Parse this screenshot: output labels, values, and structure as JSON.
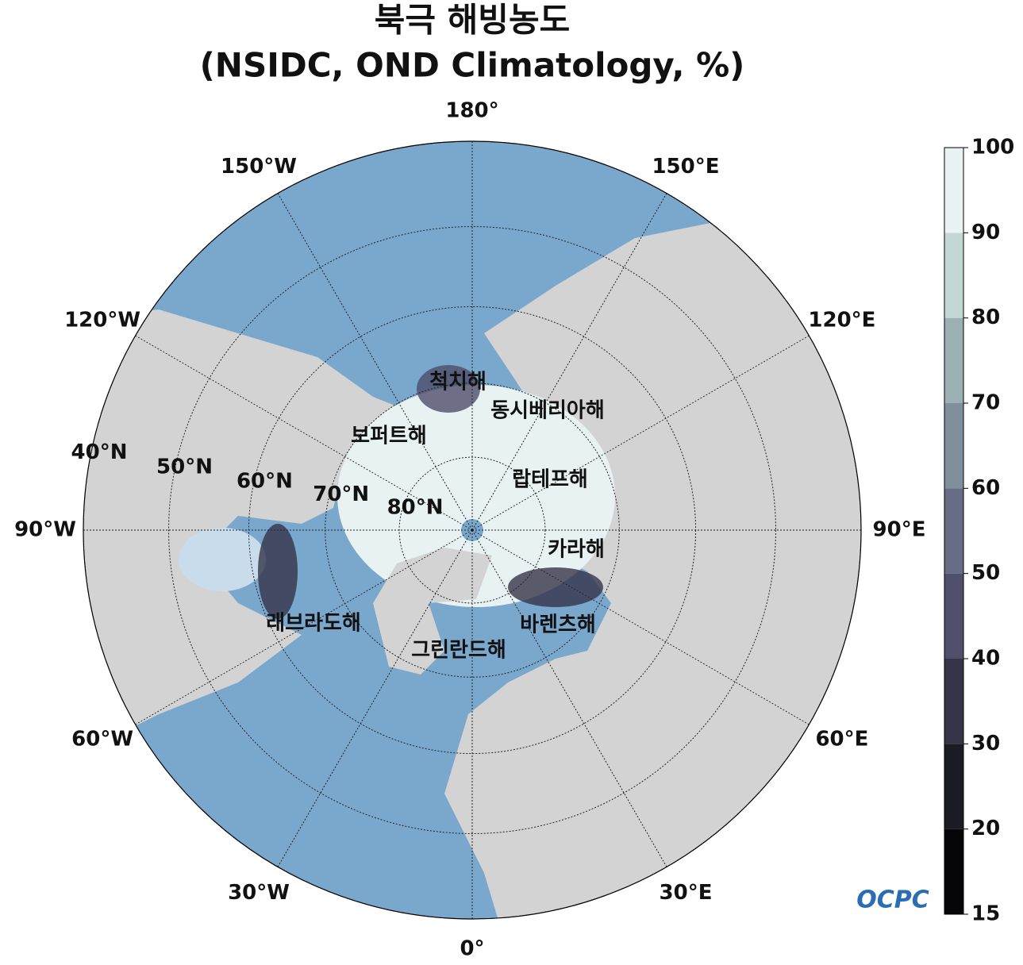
{
  "title": "북극 해빙농도",
  "subtitle": "(NSIDC, OND Climatology, %)",
  "longitudes": [
    {
      "value": 180,
      "label": "180°"
    },
    {
      "value": 150,
      "label": "150°E"
    },
    {
      "value": 120,
      "label": "120°E"
    },
    {
      "value": 90,
      "label": "90°E"
    },
    {
      "value": 60,
      "label": "60°E"
    },
    {
      "value": 30,
      "label": "30°E"
    },
    {
      "value": 0,
      "label": "0°"
    },
    {
      "value": -30,
      "label": "30°W"
    },
    {
      "value": -60,
      "label": "60°W"
    },
    {
      "value": -90,
      "label": "90°W"
    },
    {
      "value": -120,
      "label": "120°W"
    },
    {
      "value": -150,
      "label": "150°W"
    }
  ],
  "latitudes": [
    {
      "value": 40,
      "label": "40°N"
    },
    {
      "value": 50,
      "label": "50°N"
    },
    {
      "value": 60,
      "label": "60°N"
    },
    {
      "value": 70,
      "label": "70°N"
    },
    {
      "value": 80,
      "label": "80°N"
    }
  ],
  "seas": [
    "척치해",
    "동시베리아해",
    "보퍼트해",
    "랍테프해",
    "카라해",
    "바렌츠해",
    "래브라도해",
    "그린란드해"
  ],
  "colorbar": {
    "ticks": [
      15,
      20,
      30,
      40,
      50,
      60,
      70,
      80,
      90,
      100
    ],
    "colors": [
      "#060608",
      "#1b1b24",
      "#353448",
      "#4f4e6b",
      "#676d84",
      "#808f9c",
      "#9ab0b2",
      "#c3d7d5",
      "#eaf3f3"
    ]
  },
  "logo": "OCPC"
}
